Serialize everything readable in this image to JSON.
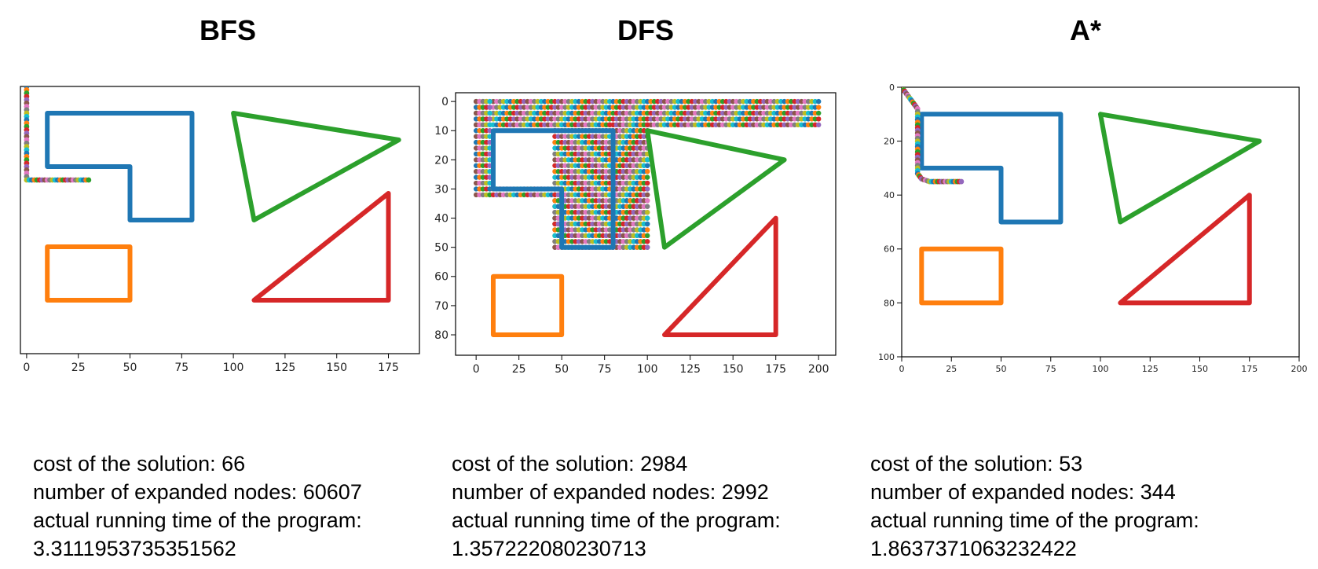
{
  "chart_data": [
    {
      "type": "scatter",
      "title": "BFS",
      "xlim": [
        -3,
        190
      ],
      "ylim": [
        0,
        100
      ],
      "x_ticks": [
        "0",
        "25",
        "50",
        "75",
        "100",
        "125",
        "150",
        "175"
      ],
      "x_tick_values": [
        0,
        25,
        50,
        75,
        100,
        125,
        150,
        175
      ],
      "show_y_ticks": false,
      "obstacles": [
        {
          "name": "L-shape",
          "color": "#1f77b4",
          "points": [
            [
              10,
              10
            ],
            [
              80,
              10
            ],
            [
              80,
              50
            ],
            [
              50,
              50
            ],
            [
              50,
              30
            ],
            [
              10,
              30
            ],
            [
              10,
              10
            ]
          ]
        },
        {
          "name": "triangle-green",
          "color": "#2ca02c",
          "points": [
            [
              100,
              10
            ],
            [
              180,
              20
            ],
            [
              110,
              50
            ],
            [
              100,
              10
            ]
          ]
        },
        {
          "name": "triangle-red",
          "color": "#d62728",
          "points": [
            [
              175,
              40
            ],
            [
              175,
              80
            ],
            [
              110,
              80
            ],
            [
              175,
              40
            ]
          ]
        },
        {
          "name": "rectangle",
          "color": "#ff7f0e",
          "points": [
            [
              10,
              60
            ],
            [
              50,
              60
            ],
            [
              50,
              80
            ],
            [
              10,
              80
            ],
            [
              10,
              60
            ]
          ]
        }
      ],
      "path": [
        [
          0,
          0
        ],
        [
          0,
          5
        ],
        [
          0,
          10
        ],
        [
          0,
          15
        ],
        [
          0,
          20
        ],
        [
          0,
          25
        ],
        [
          0,
          30
        ],
        [
          0,
          35
        ],
        [
          5,
          35
        ],
        [
          10,
          35
        ],
        [
          15,
          35
        ],
        [
          20,
          35
        ],
        [
          25,
          35
        ],
        [
          30,
          35
        ]
      ],
      "explored_bands": [],
      "stats": {
        "cost": "cost of the solution: 66",
        "expanded": "number of expanded nodes: 60607",
        "time_label": "actual running time of the program:",
        "time_value": "3.3111953735351562"
      }
    },
    {
      "type": "scatter",
      "title": "DFS",
      "xlim": [
        -12,
        210
      ],
      "ylim": [
        -3,
        87
      ],
      "x_ticks": [
        "0",
        "25",
        "50",
        "75",
        "100",
        "125",
        "150",
        "175",
        "200"
      ],
      "x_tick_values": [
        0,
        25,
        50,
        75,
        100,
        125,
        150,
        175,
        200
      ],
      "y_ticks": [
        "0",
        "10",
        "20",
        "30",
        "40",
        "50",
        "60",
        "70",
        "80"
      ],
      "y_tick_values": [
        0,
        10,
        20,
        30,
        40,
        50,
        60,
        70,
        80
      ],
      "show_y_ticks": true,
      "obstacles": [
        {
          "name": "L-shape",
          "color": "#1f77b4",
          "points": [
            [
              10,
              10
            ],
            [
              80,
              10
            ],
            [
              80,
              50
            ],
            [
              50,
              50
            ],
            [
              50,
              30
            ],
            [
              10,
              30
            ],
            [
              10,
              10
            ]
          ]
        },
        {
          "name": "triangle-green",
          "color": "#2ca02c",
          "points": [
            [
              100,
              10
            ],
            [
              180,
              20
            ],
            [
              110,
              50
            ],
            [
              100,
              10
            ]
          ]
        },
        {
          "name": "triangle-red",
          "color": "#d62728",
          "points": [
            [
              175,
              40
            ],
            [
              175,
              80
            ],
            [
              110,
              80
            ],
            [
              175,
              40
            ]
          ]
        },
        {
          "name": "rectangle",
          "color": "#ff7f0e",
          "points": [
            [
              10,
              60
            ],
            [
              50,
              60
            ],
            [
              50,
              80
            ],
            [
              10,
              80
            ],
            [
              10,
              60
            ]
          ]
        }
      ],
      "path": [],
      "explored_bands": [
        {
          "x0": 0,
          "x1": 200,
          "y0": 0,
          "y1": 8
        },
        {
          "x0": 0,
          "x1": 8,
          "y0": 0,
          "y1": 33
        },
        {
          "x0": 8,
          "x1": 50,
          "y0": 30,
          "y1": 33
        },
        {
          "x0": 46,
          "x1": 50,
          "y0": 30,
          "y1": 50
        },
        {
          "x0": 46,
          "x1": 100,
          "y0": 8,
          "y1": 51
        },
        {
          "x0": 80,
          "x1": 100,
          "y0": 8,
          "y1": 50
        }
      ],
      "stats": {
        "cost": "cost of the solution: 2984",
        "expanded": "number of expanded nodes: 2992",
        "time_label": "actual running time of the program:",
        "time_value": "1.357222080230713"
      }
    },
    {
      "type": "scatter",
      "title": "A*",
      "xlim": [
        0,
        200
      ],
      "ylim": [
        0,
        100
      ],
      "x_ticks": [
        "0",
        "25",
        "50",
        "75",
        "100",
        "125",
        "150",
        "175",
        "200"
      ],
      "x_tick_values": [
        0,
        25,
        50,
        75,
        100,
        125,
        150,
        175,
        200
      ],
      "y_ticks": [
        "0",
        "20",
        "40",
        "60",
        "80",
        "100"
      ],
      "y_tick_values": [
        0,
        20,
        40,
        60,
        80,
        100
      ],
      "show_y_ticks": true,
      "obstacles": [
        {
          "name": "L-shape",
          "color": "#1f77b4",
          "points": [
            [
              10,
              10
            ],
            [
              80,
              10
            ],
            [
              80,
              50
            ],
            [
              50,
              50
            ],
            [
              50,
              30
            ],
            [
              10,
              30
            ],
            [
              10,
              10
            ]
          ]
        },
        {
          "name": "triangle-green",
          "color": "#2ca02c",
          "points": [
            [
              100,
              10
            ],
            [
              180,
              20
            ],
            [
              110,
              50
            ],
            [
              100,
              10
            ]
          ]
        },
        {
          "name": "triangle-red",
          "color": "#d62728",
          "points": [
            [
              175,
              40
            ],
            [
              175,
              80
            ],
            [
              110,
              80
            ],
            [
              175,
              40
            ]
          ]
        },
        {
          "name": "rectangle",
          "color": "#ff7f0e",
          "points": [
            [
              10,
              60
            ],
            [
              50,
              60
            ],
            [
              50,
              80
            ],
            [
              10,
              80
            ],
            [
              10,
              60
            ]
          ]
        }
      ],
      "path": [
        [
          0,
          0
        ],
        [
          2,
          2
        ],
        [
          4,
          4
        ],
        [
          6,
          6
        ],
        [
          8,
          8
        ],
        [
          8,
          12
        ],
        [
          8,
          16
        ],
        [
          8,
          20
        ],
        [
          8,
          24
        ],
        [
          8,
          28
        ],
        [
          8,
          32
        ],
        [
          10,
          34
        ],
        [
          14,
          35
        ],
        [
          18,
          35
        ],
        [
          22,
          35
        ],
        [
          26,
          35
        ],
        [
          30,
          35
        ]
      ],
      "explored_bands": [],
      "stats": {
        "cost": "cost of the solution: 53",
        "expanded": "number of expanded nodes: 344",
        "time_label": "actual running time of the program:",
        "time_value": "1.8637371063232422"
      }
    }
  ],
  "dot_palette": [
    "#1f77b4",
    "#ff7f0e",
    "#2ca02c",
    "#d62728",
    "#9467bd",
    "#8c564b",
    "#e377c2",
    "#7f7f7f",
    "#bcbd22",
    "#17becf"
  ]
}
